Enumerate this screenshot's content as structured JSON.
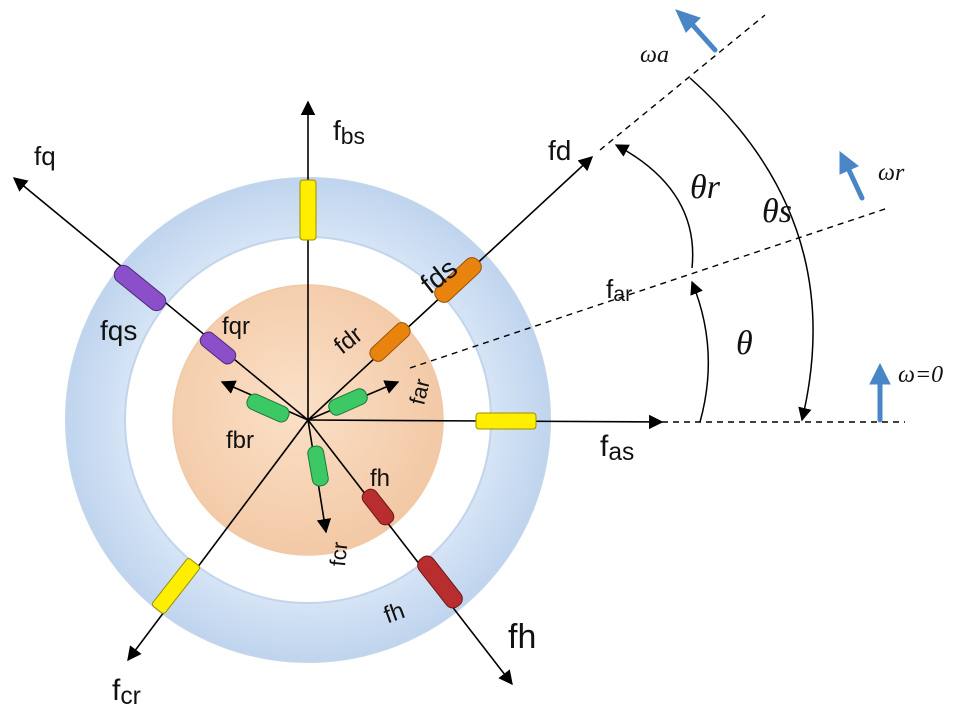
{
  "labels": {
    "f_bs": "f",
    "f_bs_sub": "bs",
    "f_q": "fq",
    "f_d": "fd",
    "f_ds": "fds",
    "f_qs": "fqs",
    "f_qr": "fqr",
    "f_dr": "fdr",
    "f_ar_inner": "far",
    "f_ar": "f",
    "f_ar_sub": "ar",
    "f_br": "fbr",
    "f_as": "f",
    "f_as_sub": "as",
    "f_h_inner": "fh",
    "f_h_mid": "fh",
    "f_h_outer": "fh",
    "f_cr_inner": "fcr",
    "f_cr": "f",
    "f_cr_sub": "cr"
  },
  "angles": {
    "omega_a": "ωa",
    "omega_r": "ωr",
    "omega_0": "ω=0",
    "theta_r": "θr",
    "theta_s": "θs",
    "theta": "θ"
  },
  "colors": {
    "stator_ring": "#d3e4f6",
    "rotor": "#f8d5b5",
    "yellow_winding": "#ffee00",
    "orange_winding": "#e8830e",
    "purple_winding": "#8a4fc9",
    "green_winding": "#3cc864",
    "red_winding": "#b82e2e",
    "blue_arrow": "#4a86c6"
  }
}
